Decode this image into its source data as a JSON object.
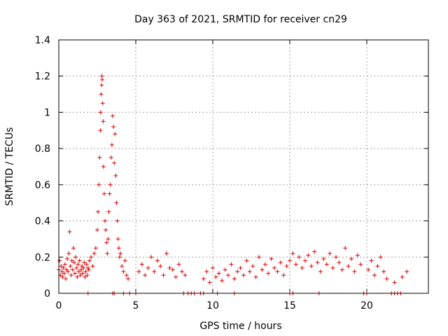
{
  "chart_data": {
    "type": "scatter",
    "title": "Day 363 of 2021, SRMTID for receiver cn29",
    "xlabel": "GPS time / hours",
    "ylabel": "SRMTID / TECUs",
    "xlim": [
      0,
      24
    ],
    "ylim": [
      0,
      1.4
    ],
    "xticks": [
      0,
      5,
      10,
      15,
      20
    ],
    "xtick_labels": [
      "0",
      "5",
      "10",
      "15",
      "20"
    ],
    "yticks": [
      0,
      0.2,
      0.4,
      0.6,
      0.8,
      1,
      1.2,
      1.4
    ],
    "ytick_labels": [
      "0",
      "0.2",
      "0.4",
      "0.6",
      "0.8",
      "1",
      "1.2",
      "1.4"
    ],
    "grid": true,
    "marker": "+",
    "series": [
      {
        "name": "SRMTID",
        "color": "#dd0000",
        "x": [
          0.0,
          0.05,
          0.1,
          0.15,
          0.2,
          0.25,
          0.3,
          0.35,
          0.4,
          0.45,
          0.5,
          0.55,
          0.6,
          0.65,
          0.7,
          0.75,
          0.8,
          0.85,
          0.9,
          0.95,
          1.0,
          1.05,
          1.1,
          1.15,
          1.2,
          1.25,
          1.3,
          1.35,
          1.4,
          1.45,
          1.5,
          1.55,
          1.6,
          1.65,
          1.7,
          1.75,
          1.8,
          1.85,
          1.9,
          1.95,
          2.0,
          2.1,
          2.2,
          2.3,
          2.4,
          2.5,
          2.55,
          2.6,
          2.65,
          2.7,
          2.72,
          2.75,
          2.78,
          2.8,
          2.82,
          2.85,
          2.88,
          2.9,
          2.95,
          3.0,
          3.05,
          3.1,
          3.15,
          3.2,
          3.25,
          3.3,
          3.35,
          3.4,
          3.45,
          3.5,
          3.55,
          3.6,
          3.65,
          3.7,
          3.75,
          3.8,
          3.85,
          3.9,
          3.95,
          4.0,
          4.1,
          4.2,
          4.3,
          4.4,
          4.5,
          5.2,
          5.4,
          5.6,
          5.8,
          6.0,
          6.2,
          6.4,
          6.6,
          6.8,
          7.0,
          7.2,
          7.4,
          7.6,
          7.8,
          8.0,
          8.2,
          9.4,
          9.6,
          9.8,
          10.0,
          10.2,
          10.4,
          10.6,
          10.8,
          11.0,
          11.2,
          11.4,
          11.6,
          11.8,
          12.0,
          12.2,
          12.4,
          12.6,
          12.8,
          13.0,
          13.2,
          13.4,
          13.6,
          13.8,
          14.0,
          14.2,
          14.4,
          14.6,
          14.8,
          15.0,
          15.2,
          15.4,
          15.6,
          15.8,
          16.0,
          16.2,
          16.4,
          16.6,
          16.8,
          17.0,
          17.2,
          17.4,
          17.6,
          17.8,
          18.0,
          18.2,
          18.4,
          18.6,
          18.8,
          19.0,
          19.2,
          19.4,
          19.6,
          20.1,
          20.3,
          20.5,
          20.7,
          20.9,
          21.1,
          21.3,
          21.8,
          22.3,
          22.6,
          1.9,
          3.5,
          3.6,
          4.2,
          4.6,
          5.0,
          8.1,
          8.4,
          8.6,
          8.8,
          9.2,
          9.4,
          10.3,
          11.4,
          15.0,
          15.2,
          16.9,
          19.8,
          20.0,
          21.6,
          21.8,
          22.0,
          22.2
        ],
        "y": [
          0.13,
          0.18,
          0.1,
          0.15,
          0.12,
          0.09,
          0.14,
          0.11,
          0.16,
          0.08,
          0.13,
          0.19,
          0.12,
          0.22,
          0.34,
          0.15,
          0.1,
          0.18,
          0.13,
          0.25,
          0.17,
          0.11,
          0.2,
          0.14,
          0.09,
          0.16,
          0.12,
          0.18,
          0.1,
          0.13,
          0.15,
          0.11,
          0.14,
          0.17,
          0.09,
          0.12,
          0.16,
          0.1,
          0.14,
          0.13,
          0.18,
          0.2,
          0.15,
          0.22,
          0.25,
          0.35,
          0.45,
          0.6,
          0.75,
          0.9,
          1.0,
          1.1,
          1.15,
          1.2,
          1.18,
          1.05,
          0.95,
          0.7,
          0.55,
          0.4,
          0.35,
          0.28,
          0.22,
          0.3,
          0.45,
          0.55,
          0.6,
          0.75,
          0.82,
          0.98,
          0.92,
          0.72,
          0.88,
          0.65,
          0.5,
          0.4,
          0.3,
          0.25,
          0.2,
          0.22,
          0.15,
          0.12,
          0.18,
          0.1,
          0.08,
          0.12,
          0.16,
          0.1,
          0.14,
          0.2,
          0.12,
          0.18,
          0.15,
          0.1,
          0.22,
          0.14,
          0.13,
          0.09,
          0.16,
          0.12,
          0.1,
          0.08,
          0.12,
          0.06,
          0.14,
          0.09,
          0.11,
          0.07,
          0.13,
          0.1,
          0.16,
          0.08,
          0.12,
          0.14,
          0.1,
          0.18,
          0.12,
          0.15,
          0.09,
          0.2,
          0.13,
          0.16,
          0.11,
          0.19,
          0.14,
          0.12,
          0.17,
          0.1,
          0.15,
          0.18,
          0.22,
          0.16,
          0.2,
          0.14,
          0.18,
          0.21,
          0.15,
          0.23,
          0.17,
          0.12,
          0.19,
          0.16,
          0.22,
          0.14,
          0.2,
          0.17,
          0.13,
          0.25,
          0.15,
          0.19,
          0.12,
          0.21,
          0.16,
          0.13,
          0.18,
          0.1,
          0.15,
          0.2,
          0.12,
          0.08,
          0.06,
          0.09,
          0.12,
          0.0,
          0.0,
          0.0,
          0.0,
          0.0,
          0.0,
          0.0,
          0.0,
          0.0,
          0.0,
          0.0,
          0.0,
          0.0,
          0.0,
          0.0,
          0.0,
          0.0,
          0.0,
          0.0,
          0.0,
          0.0,
          0.0,
          0.0
        ]
      }
    ]
  }
}
